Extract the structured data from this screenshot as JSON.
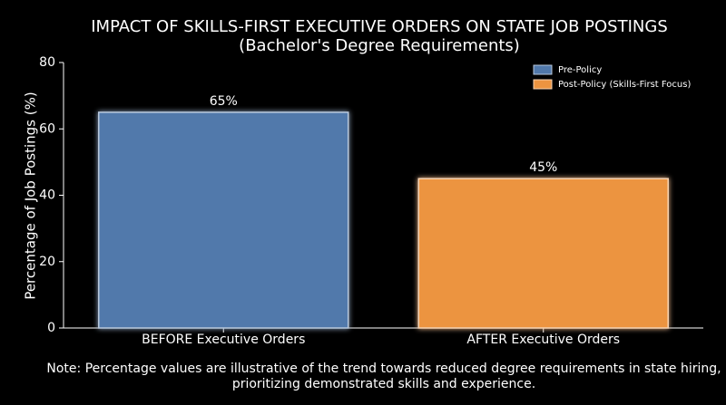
{
  "chart_data": {
    "type": "bar",
    "title": "IMPACT OF SKILLS-FIRST EXECUTIVE ORDERS ON STATE JOB POSTINGS",
    "subtitle": "(Bachelor's Degree Requirements)",
    "y_label": "Percentage of Job Postings (%)",
    "categories": [
      "BEFORE Executive Orders",
      "AFTER Executive Orders"
    ],
    "series": [
      {
        "name": "Pre-Policy",
        "color": "#5179ab",
        "values": [
          65,
          null
        ],
        "value_labels": [
          "65%",
          null
        ]
      },
      {
        "name": "Post-Policy (Skills-First Focus)",
        "color": "#ec9441",
        "values": [
          null,
          45
        ],
        "value_labels": [
          null,
          "45%"
        ]
      }
    ],
    "ylim": [
      0,
      80
    ],
    "yticks": [
      0,
      20,
      40,
      60,
      80
    ],
    "grid": false,
    "legend": "upper right",
    "note": [
      "Note: Percentage values are illustrative of the trend towards reduced degree requirements in state hiring,",
      "prioritizing demonstrated skills and experience."
    ]
  }
}
